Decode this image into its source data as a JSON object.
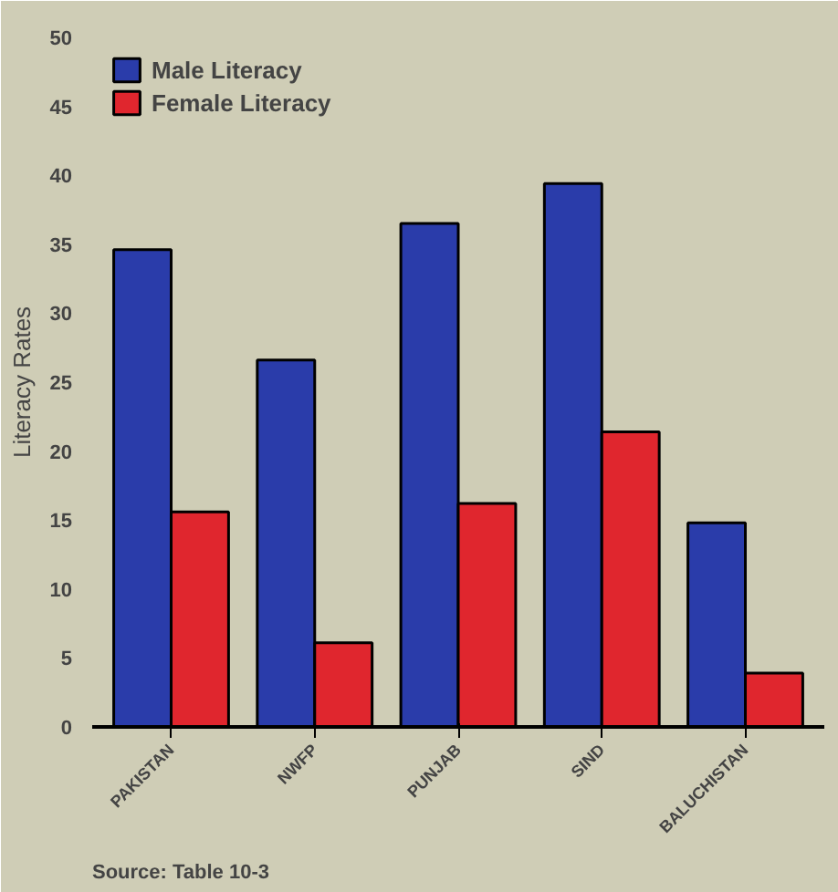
{
  "chart_data": {
    "type": "bar",
    "ylabel": "Literacy Rates",
    "categories": [
      "PAKISTAN",
      "NWFP",
      "PUNJAB",
      "SIND",
      "BALUCHISTAN"
    ],
    "series": [
      {
        "name": "Male Literacy",
        "color": "#2a3caa",
        "values": [
          34.6,
          26.6,
          36.5,
          39.4,
          14.8
        ]
      },
      {
        "name": "Female Literacy",
        "color": "#e0262e",
        "values": [
          15.6,
          6.1,
          16.2,
          21.4,
          3.9
        ]
      }
    ],
    "ylim": [
      0,
      50
    ],
    "yticks": [
      0,
      5,
      10,
      15,
      20,
      25,
      30,
      35,
      40,
      45,
      50
    ],
    "grid": false,
    "legend": "top left",
    "annotations": [
      "Source: Table 10-3"
    ]
  }
}
